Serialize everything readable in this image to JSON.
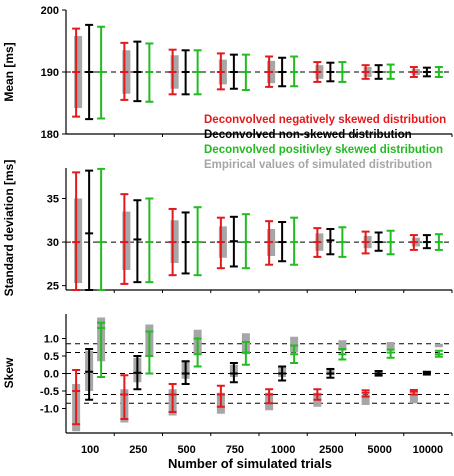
{
  "chart_data": [
    {
      "type": "errorbar",
      "ylabel": "Mean [ms]",
      "ylim": [
        180,
        200
      ],
      "yticks": [
        180,
        190,
        200
      ],
      "reference_line": 190,
      "categories": [
        "100",
        "250",
        "500",
        "750",
        "1000",
        "2500",
        "5000",
        "10000"
      ],
      "groups": [
        {
          "name": "empirical",
          "lo": [
            184.2,
            186.5,
            187.3,
            188.0,
            188.2,
            188.9,
            189.2,
            189.5
          ],
          "hi": [
            195.8,
            193.5,
            192.7,
            192.0,
            191.8,
            191.1,
            190.8,
            190.5
          ]
        },
        {
          "name": "negative",
          "mid": [
            190,
            190,
            190,
            190,
            190,
            190,
            190,
            190
          ],
          "lo": [
            182.8,
            185.5,
            186.4,
            187.2,
            187.6,
            188.4,
            188.9,
            189.2
          ],
          "hi": [
            197.0,
            194.7,
            193.6,
            193.0,
            192.5,
            191.6,
            191.1,
            190.8
          ]
        },
        {
          "name": "nonskewed",
          "mid": [
            190,
            190,
            190,
            190,
            190,
            190,
            190,
            190
          ],
          "lo": [
            182.4,
            185.3,
            186.4,
            187.3,
            187.7,
            188.5,
            188.9,
            189.3
          ],
          "hi": [
            197.6,
            194.9,
            193.5,
            192.8,
            192.3,
            191.5,
            191.1,
            190.7
          ]
        },
        {
          "name": "positive",
          "mid": [
            190,
            190,
            190,
            190,
            190,
            190,
            190,
            190
          ],
          "lo": [
            182.5,
            185.2,
            186.4,
            187.1,
            187.7,
            188.4,
            188.9,
            189.2
          ],
          "hi": [
            197.3,
            194.6,
            193.5,
            192.8,
            192.5,
            191.6,
            191.2,
            190.8
          ]
        }
      ]
    },
    {
      "type": "errorbar",
      "ylabel": "Standard deviation [ms]",
      "ylim": [
        24.5,
        38.5
      ],
      "yticks": [
        25,
        30,
        35
      ],
      "reference_line": 30,
      "categories": [
        "100",
        "250",
        "500",
        "750",
        "1000",
        "2500",
        "5000",
        "10000"
      ],
      "groups": [
        {
          "name": "empirical",
          "lo": [
            25.3,
            26.8,
            27.6,
            28.2,
            28.4,
            29.0,
            29.3,
            29.5
          ],
          "hi": [
            35.0,
            33.5,
            32.5,
            31.8,
            31.5,
            31.0,
            30.7,
            30.5
          ]
        },
        {
          "name": "negative",
          "mid": [
            30,
            30,
            30,
            30,
            30,
            30,
            30,
            30
          ],
          "lo": [
            24.5,
            25.2,
            26.2,
            27.0,
            27.4,
            28.3,
            28.7,
            29.1
          ],
          "hi": [
            38.0,
            35.5,
            33.8,
            32.8,
            32.4,
            31.6,
            31.2,
            30.8
          ]
        },
        {
          "name": "nonskewed",
          "mid": [
            31,
            30.3,
            30,
            30.1,
            30,
            30.2,
            30,
            30
          ],
          "lo": [
            24.5,
            25.4,
            26.4,
            27.2,
            27.8,
            28.6,
            29.0,
            29.3
          ],
          "hi": [
            38.2,
            34.8,
            33.4,
            32.9,
            32.3,
            31.5,
            31.1,
            30.8
          ]
        },
        {
          "name": "positive",
          "mid": [
            30,
            30,
            30,
            30,
            30,
            30,
            30,
            30
          ],
          "lo": [
            24.5,
            25.4,
            26.2,
            27.0,
            27.4,
            28.3,
            28.6,
            29.1
          ],
          "hi": [
            38.4,
            35.0,
            34.0,
            33.2,
            32.8,
            31.7,
            31.3,
            30.9
          ]
        }
      ]
    },
    {
      "type": "errorbar",
      "ylabel": "Skew",
      "ylim": [
        -1.7,
        1.7
      ],
      "yticks": [
        -1.0,
        -0.5,
        0.0,
        0.5,
        1.0
      ],
      "tick_labels": [
        "-1.0",
        "-0.5",
        "0.0",
        "0.5",
        "1.0"
      ],
      "reference_lines": [
        -0.85,
        -0.6,
        0.0,
        0.6,
        0.85
      ],
      "categories": [
        "100",
        "250",
        "500",
        "750",
        "1000",
        "2500",
        "5000",
        "10000"
      ],
      "groups": [
        {
          "name": "empirical_neg",
          "lo": [
            -1.65,
            -1.4,
            -1.2,
            -1.15,
            -1.05,
            -0.95,
            -0.9,
            -0.85
          ],
          "hi": [
            -0.3,
            -0.45,
            -0.45,
            -0.55,
            -0.55,
            -0.55,
            -0.6,
            -0.6
          ]
        },
        {
          "name": "empirical_non",
          "lo": [
            -0.5,
            -0.25,
            -0.15,
            -0.1,
            -0.1,
            -0.05,
            -0.05,
            0.0
          ],
          "hi": [
            0.65,
            0.45,
            0.35,
            0.25,
            0.2,
            0.15,
            0.1,
            0.05
          ]
        },
        {
          "name": "empirical_pos",
          "lo": [
            0.35,
            0.5,
            0.55,
            0.55,
            0.6,
            0.65,
            0.7,
            0.75
          ],
          "hi": [
            1.6,
            1.4,
            1.25,
            1.15,
            1.05,
            0.95,
            0.9,
            0.85
          ]
        },
        {
          "name": "negative",
          "mid": [
            -0.5,
            -0.6,
            -0.6,
            -0.6,
            -0.6,
            -0.6,
            -0.55,
            -0.52
          ],
          "lo": [
            -1.45,
            -1.3,
            -1.1,
            -0.95,
            -0.85,
            -0.75,
            -0.66,
            -0.6
          ],
          "hi": [
            0.1,
            -0.05,
            -0.3,
            -0.35,
            -0.45,
            -0.45,
            -0.48,
            -0.47
          ]
        },
        {
          "name": "nonskewed",
          "mid": [
            0.05,
            0.02,
            0.0,
            0.0,
            0.0,
            0.0,
            0.0,
            0.02
          ],
          "lo": [
            -0.75,
            -0.45,
            -0.3,
            -0.25,
            -0.2,
            -0.12,
            -0.06,
            -0.03
          ],
          "hi": [
            0.7,
            0.5,
            0.35,
            0.3,
            0.2,
            0.13,
            0.07,
            0.05
          ]
        },
        {
          "name": "positive",
          "mid": [
            1.3,
            0.5,
            0.55,
            0.6,
            0.55,
            0.55,
            0.6,
            0.55
          ],
          "lo": [
            -0.1,
            0.0,
            0.2,
            0.25,
            0.3,
            0.4,
            0.45,
            0.48
          ],
          "hi": [
            1.45,
            1.2,
            1.0,
            0.9,
            0.8,
            0.7,
            0.68,
            0.65
          ]
        }
      ]
    }
  ],
  "legend": [
    {
      "label": "Deconvolved negatively skewed distribution",
      "color": "#e31a1c"
    },
    {
      "label": "Deconvolved non-skewed distribution",
      "color": "#000000"
    },
    {
      "label": "Deconvolved positivley skewed distribution",
      "color": "#22bb22"
    },
    {
      "label": "Empirical values of simulated distribution",
      "color": "#a6a6a6"
    }
  ],
  "xlabel": "Number of simulated trials",
  "colors": {
    "negative": "#e31a1c",
    "nonskewed": "#000000",
    "positive": "#22bb22",
    "empirical": "#a6a6a6"
  }
}
